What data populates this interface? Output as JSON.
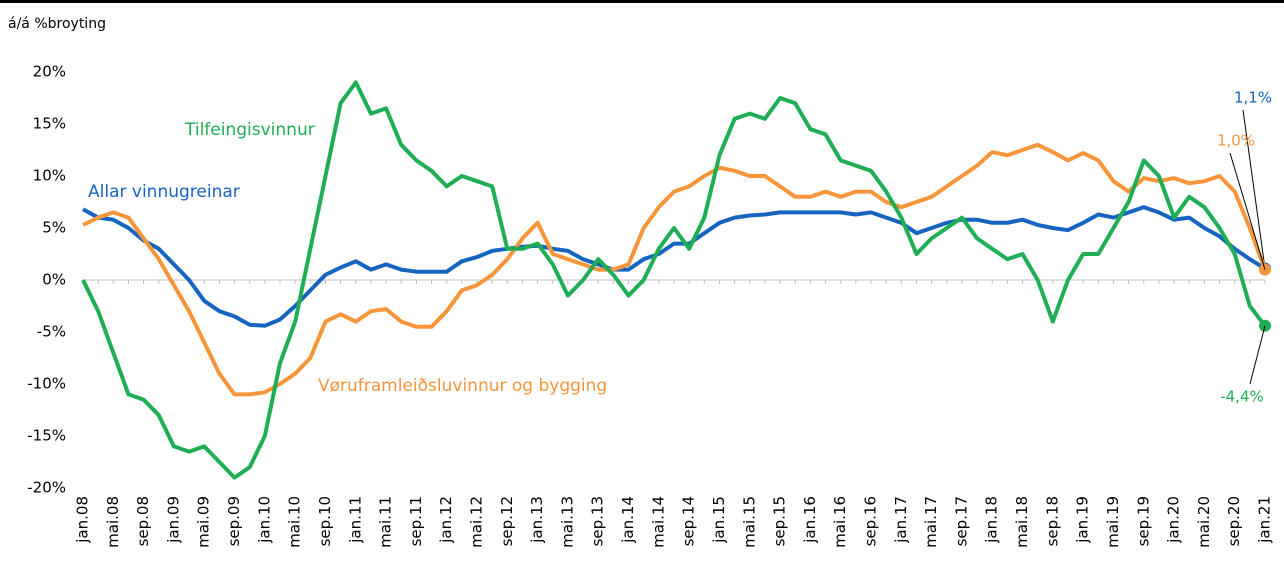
{
  "chart_data": {
    "type": "line",
    "y_axis_title": "á/á %broyting",
    "categories": [
      "jan.08",
      null,
      "mai.08",
      null,
      "sep.08",
      null,
      "jan.09",
      null,
      "mai.09",
      null,
      "sep.09",
      null,
      "jan.10",
      null,
      "mai.10",
      null,
      "sep.10",
      null,
      "jan.11",
      null,
      "mai.11",
      null,
      "sep.11",
      null,
      "jan.12",
      null,
      "mai.12",
      null,
      "sep.12",
      null,
      "jan.13",
      null,
      "mai.13",
      null,
      "sep.13",
      null,
      "jan.14",
      null,
      "mai.14",
      null,
      "sep.14",
      null,
      "jan.15",
      null,
      "mai.15",
      null,
      "sep.15",
      null,
      "jan.16",
      null,
      "mai.16",
      null,
      "sep.16",
      null,
      "jan.17",
      null,
      "mai.17",
      null,
      "sep.17",
      null,
      "jan.18",
      null,
      "mai.18",
      null,
      "sep.18",
      null,
      "jan.19",
      null,
      "mai.19",
      null,
      "sep.19",
      null,
      "jan.20",
      null,
      "mai.20",
      null,
      "sep.20",
      null,
      "jan.21"
    ],
    "ylim": [
      -20,
      20
    ],
    "yticks": [
      {
        "value": 20,
        "label": "20%"
      },
      {
        "value": 15,
        "label": "15%"
      },
      {
        "value": 10,
        "label": "10%"
      },
      {
        "value": 5,
        "label": "5%"
      },
      {
        "value": 0,
        "label": "0%"
      },
      {
        "value": -5,
        "label": "-5%"
      },
      {
        "value": -10,
        "label": "-10%"
      },
      {
        "value": -15,
        "label": "-15%"
      },
      {
        "value": -20,
        "label": "-20%"
      }
    ],
    "series": [
      {
        "name": "Allar vinnugreinar",
        "color": "#1565c0",
        "end_label": "1,1%",
        "values": [
          6.8,
          6,
          5.8,
          5,
          3.8,
          3,
          1.5,
          0,
          -2,
          -3,
          -3.5,
          -4.3,
          -4.4,
          -3.8,
          -2.5,
          -1,
          0.5,
          1.2,
          1.8,
          1,
          1.5,
          1,
          0.8,
          0.8,
          0.8,
          1.8,
          2.2,
          2.8,
          3,
          3.2,
          3.3,
          3,
          2.8,
          2,
          1.5,
          1,
          1,
          2,
          2.5,
          3.5,
          3.5,
          4.5,
          5.5,
          6,
          6.2,
          6.3,
          6.5,
          6.5,
          6.5,
          6.5,
          6.5,
          6.3,
          6.5,
          6,
          5.5,
          4.5,
          5,
          5.5,
          5.8,
          5.8,
          5.5,
          5.5,
          5.8,
          5.3,
          5,
          4.8,
          5.5,
          6.3,
          6,
          6.5,
          7,
          6.5,
          5.8,
          6,
          5,
          4.2,
          3,
          2,
          1.1
        ]
      },
      {
        "name": "Vøruframleiðsluvinnur og bygging",
        "color": "#f7953a",
        "end_label": "1,0%",
        "values": [
          5.3,
          6,
          6.5,
          6,
          4,
          2,
          -0.5,
          -3,
          -6,
          -9,
          -11,
          -11,
          -10.8,
          -10,
          -9,
          -7.5,
          -4,
          -3.3,
          -4,
          -3,
          -2.8,
          -4,
          -4.5,
          -4.5,
          -3,
          -1,
          -0.5,
          0.5,
          2,
          4,
          5.5,
          2.5,
          2,
          1.5,
          1,
          1,
          1.5,
          5,
          7,
          8.5,
          9,
          10,
          10.8,
          10.5,
          10,
          10,
          9,
          8,
          8,
          8.5,
          8,
          8.5,
          8.5,
          7.5,
          7,
          7.5,
          8,
          9,
          10,
          11,
          12.3,
          12,
          12.5,
          13,
          12.3,
          11.5,
          12.2,
          11.5,
          9.5,
          8.5,
          9.8,
          9.5,
          9.8,
          9.3,
          9.5,
          10,
          8.5,
          5,
          1.0
        ]
      },
      {
        "name": "Tilfeingisvinnur",
        "color": "#1fae54",
        "end_label": "-4,4%",
        "values": [
          0,
          -3,
          -7,
          -11,
          -11.5,
          -13,
          -16,
          -16.5,
          -16,
          -17.5,
          -19,
          -18,
          -15,
          -8,
          -4,
          3,
          10,
          17,
          19,
          16,
          16.5,
          13,
          11.5,
          10.5,
          9,
          10,
          9.5,
          9,
          3,
          3,
          3.5,
          1.5,
          -1.5,
          0,
          2,
          0.5,
          -1.5,
          0,
          3,
          5,
          3,
          6,
          12,
          15.5,
          16,
          15.5,
          17.5,
          17,
          14.5,
          14,
          11.5,
          11,
          10.5,
          8.5,
          6,
          2.5,
          4,
          5,
          6,
          4,
          3,
          2,
          2.5,
          0,
          -4,
          0,
          2.5,
          2.5,
          5,
          7.5,
          11.5,
          10,
          6,
          8,
          7,
          5,
          2.5,
          -2.5,
          -4.4
        ]
      }
    ]
  }
}
